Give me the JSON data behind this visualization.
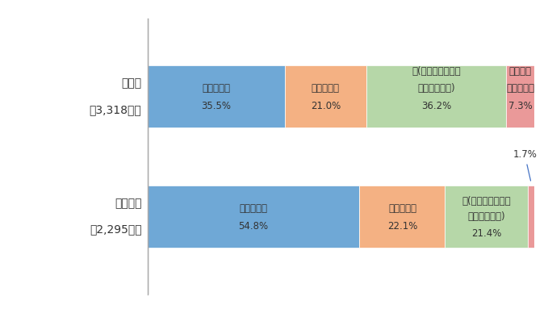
{
  "rows": [
    {
      "label_line1": "延滞者",
      "label_line2": "（3,318人）",
      "values": [
        35.5,
        21.0,
        36.2,
        7.3
      ],
      "seg0_label": "奨学生本人",
      "seg1_label": "本人と親等",
      "seg2_label_l1": "親(または祖父母等",
      "seg2_label_l2": "の家族、親戚)",
      "seg3_label_l1": "その他・",
      "seg3_label_l2": "わからない",
      "pct_labels": [
        "35.5%",
        "21.0%",
        "36.2%",
        "7.3%"
      ]
    },
    {
      "label_line1": "無延滞者",
      "label_line2": "（2,295人）",
      "values": [
        54.8,
        22.1,
        21.4,
        1.7
      ],
      "seg0_label": "奨学生本人",
      "seg1_label": "本人と親等",
      "seg2_label_l1": "親(または祖父母等",
      "seg2_label_l2": "の家族、親戚)",
      "seg3_label_l1": "",
      "seg3_label_l2": "",
      "pct_labels": [
        "54.8%",
        "22.1%",
        "21.4%",
        "1.7%"
      ]
    }
  ],
  "colors": [
    "#6fa8d6",
    "#f4b183",
    "#b6d7a8",
    "#ea9999"
  ],
  "bar_height": 0.52,
  "background_color": "#ffffff",
  "label_color": "#333333",
  "text_color": "#333333",
  "figsize": [
    6.79,
    3.88
  ],
  "dpi": 100,
  "xlim": [
    0,
    100
  ],
  "font_size": 8.5,
  "label_font_size": 10
}
